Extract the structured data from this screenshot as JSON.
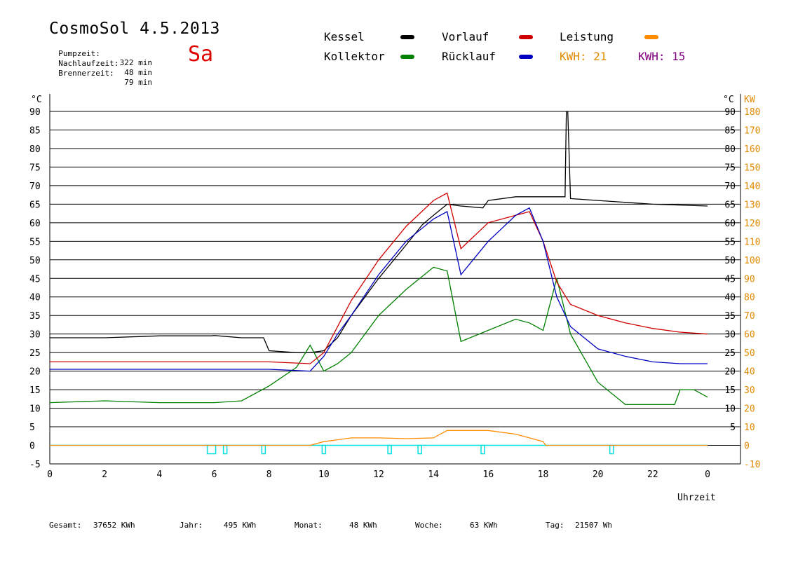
{
  "header": {
    "title": "CosmoSol 4.5.2013",
    "day": "Sa",
    "stats": [
      {
        "label": "Pumpzeit:",
        "value": "322 min"
      },
      {
        "label": "Nachlaufzeit:",
        "value": "48 min"
      },
      {
        "label": "Brennerzeit:",
        "value": "79 min"
      }
    ]
  },
  "legend": {
    "kessel": "Kessel",
    "kollektor": "Kollektor",
    "vorlauf": "Vorlauf",
    "ruecklauf": "Rücklauf",
    "leistung": "Leistung",
    "kwh1_label": "KWH:",
    "kwh1_value": "21",
    "kwh2_label": "KWH:",
    "kwh2_value": "15"
  },
  "footer": {
    "gesamt_label": "Gesamt:",
    "gesamt_value": "37652 KWh",
    "jahr_label": "Jahr:",
    "jahr_value": "495 KWh",
    "monat_label": "Monat:",
    "monat_value": "48 KWh",
    "woche_label": "Woche:",
    "woche_value": "63 KWh",
    "tag_label": "Tag:",
    "tag_value": "21507 Wh"
  },
  "colors": {
    "kessel": "#000000",
    "kollektor": "#008000",
    "vorlauf": "#d00000",
    "ruecklauf": "#0000c0",
    "leistung": "#ff8c00",
    "kwh2": "#800080",
    "pump": "#00e0e0",
    "day": "#e00000"
  },
  "chart_data": {
    "type": "line",
    "xlabel": "Uhrzeit",
    "ylabel_left": "°C",
    "ylabel_right_unit": "°C",
    "ylabel_power": "KW",
    "xlim": [
      0,
      24
    ],
    "ylim": [
      -5,
      90
    ],
    "x_ticks": [
      "0",
      "2",
      "4",
      "6",
      "8",
      "10",
      "12",
      "14",
      "16",
      "18",
      "20",
      "22",
      "0"
    ],
    "y_ticks_left": [
      "-5",
      "0",
      "5",
      "10",
      "15",
      "20",
      "25",
      "30",
      "35",
      "40",
      "45",
      "50",
      "55",
      "60",
      "65",
      "70",
      "75",
      "80",
      "85",
      "90"
    ],
    "y_ticks_right": [
      "5",
      "10",
      "15",
      "20",
      "25",
      "30",
      "35",
      "40",
      "45",
      "50",
      "55",
      "60",
      "65",
      "70",
      "75",
      "80",
      "85",
      "90"
    ],
    "y_ticks_power": [
      "-10",
      "0",
      "10",
      "20",
      "30",
      "40",
      "50",
      "60",
      "70",
      "80",
      "90",
      "100",
      "110",
      "120",
      "130",
      "140",
      "150",
      "160",
      "170",
      "180"
    ],
    "series": [
      {
        "name": "Kessel",
        "color": "#000000",
        "x": [
          0,
          2,
          4,
          5.9,
          6,
          7,
          7.8,
          8,
          9,
          9.5,
          10,
          10.5,
          11,
          12,
          13,
          13.6,
          14,
          14.5,
          15,
          15.8,
          16,
          17,
          17.5,
          18,
          18.8,
          18.85,
          18.9,
          19,
          20,
          22,
          24
        ],
        "y": [
          29,
          29,
          29.5,
          29.5,
          29.6,
          29,
          29,
          25.5,
          25,
          25,
          25.5,
          29,
          35,
          45,
          54,
          59.5,
          62,
          65,
          64.5,
          64,
          66,
          67,
          67,
          67,
          67,
          90,
          90,
          66.5,
          66,
          65,
          64.5
        ]
      },
      {
        "name": "Kollektor",
        "color": "#008000",
        "x": [
          0,
          2,
          4,
          6,
          7,
          8,
          9,
          9.5,
          10,
          10.5,
          11,
          12,
          13,
          14,
          14.5,
          15,
          16,
          17,
          17.5,
          18,
          18.5,
          19,
          20,
          21,
          22,
          22.8,
          23,
          23.5,
          24
        ],
        "y": [
          11.5,
          12,
          11.5,
          11.5,
          12,
          16,
          21,
          27,
          20,
          22,
          25,
          35,
          42,
          48,
          47,
          28,
          31,
          34,
          33,
          31,
          45,
          30,
          17,
          11,
          11,
          11,
          15,
          15,
          13
        ]
      },
      {
        "name": "Vorlauf",
        "color": "#d00000",
        "x": [
          0,
          2,
          4,
          6,
          8,
          9.5,
          10,
          10.5,
          11,
          12,
          13,
          14,
          14.5,
          15,
          16,
          17,
          17.5,
          18,
          18.5,
          19,
          20,
          21,
          22,
          23,
          24
        ],
        "y": [
          22.5,
          22.5,
          22.5,
          22.5,
          22.5,
          22,
          25,
          32,
          39,
          50,
          59,
          66,
          68,
          53,
          60,
          62,
          63,
          55,
          44,
          38,
          35,
          33,
          31.5,
          30.5,
          30
        ]
      },
      {
        "name": "Rücklauf",
        "color": "#0000c0",
        "x": [
          0,
          2,
          4,
          6,
          8,
          9.5,
          10,
          10.5,
          11,
          12,
          13,
          14,
          14.5,
          15,
          16,
          17,
          17.5,
          18,
          18.5,
          19,
          20,
          21,
          22,
          23,
          24
        ],
        "y": [
          20.5,
          20.5,
          20.5,
          20.5,
          20.5,
          20,
          24,
          30,
          35,
          46,
          55,
          61,
          63,
          46,
          55,
          62,
          64,
          55,
          40,
          32,
          26,
          24,
          22.5,
          22,
          22
        ]
      },
      {
        "name": "Leistung",
        "color": "#ff8c00",
        "x": [
          0,
          9.5,
          10,
          10.5,
          11,
          12,
          13,
          14,
          14.5,
          15,
          16,
          17,
          17.5,
          18,
          18.1,
          24
        ],
        "y": [
          0,
          0,
          1,
          1.5,
          2,
          2,
          1.8,
          2,
          4,
          4,
          4,
          3,
          2,
          1,
          0,
          0
        ]
      }
    ],
    "pump_markers_x": [
      5.9,
      6.4,
      7.8,
      10,
      12.4,
      13.5,
      15.8,
      20.5
    ]
  }
}
